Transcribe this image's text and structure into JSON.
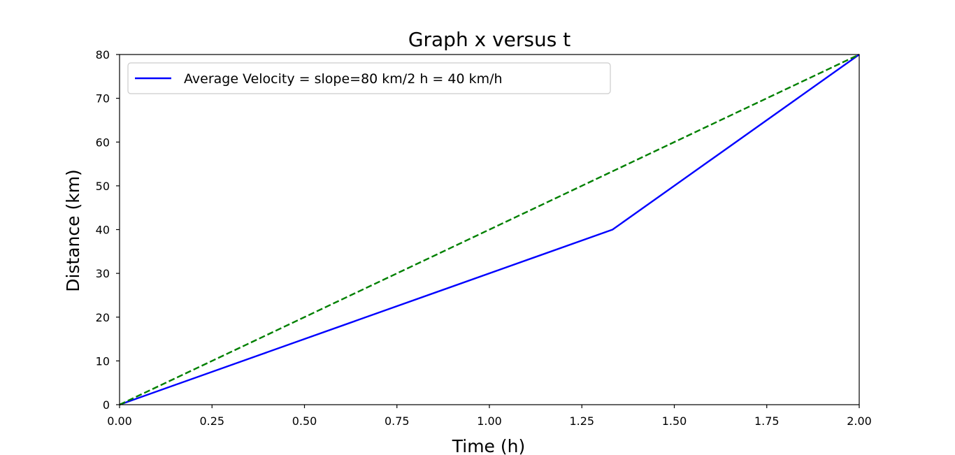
{
  "chart_data": {
    "type": "line",
    "title": "Graph x versus t",
    "xlabel": "Time (h)",
    "ylabel": "Distance (km)",
    "xlim": [
      0,
      2
    ],
    "ylim": [
      0,
      80
    ],
    "xticks": [
      "0.00",
      "0.25",
      "0.50",
      "0.75",
      "1.00",
      "1.25",
      "1.50",
      "1.75",
      "2.00"
    ],
    "yticks": [
      "0",
      "10",
      "20",
      "30",
      "40",
      "50",
      "60",
      "70",
      "80"
    ],
    "grid": false,
    "legend_position": "top-left",
    "series": [
      {
        "name": "Average Velocity = slope=80 km/2 h = 40 km/h",
        "color": "#0000ff",
        "style": "solid",
        "x": [
          0,
          1.333,
          2
        ],
        "y": [
          0,
          40,
          80
        ]
      },
      {
        "color": "#008000",
        "style": "dashed",
        "x": [
          0,
          2
        ],
        "y": [
          0,
          80
        ]
      }
    ]
  }
}
